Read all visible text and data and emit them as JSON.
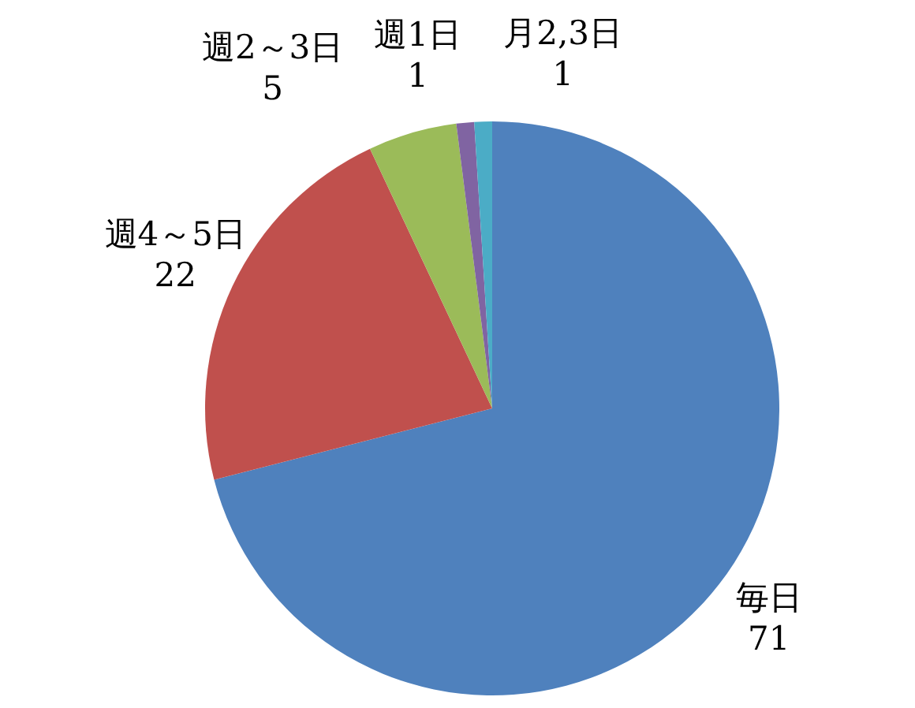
{
  "chart_data": {
    "type": "pie",
    "categories": [
      "毎日",
      "週4～5日",
      "週2～3日",
      "週1日",
      "月2,3日"
    ],
    "values": [
      71,
      22,
      5,
      1,
      1
    ],
    "colors": [
      "#4f81bd",
      "#c0504d",
      "#9bbb59",
      "#8064a2",
      "#4bacc6"
    ],
    "data_labels": true
  }
}
